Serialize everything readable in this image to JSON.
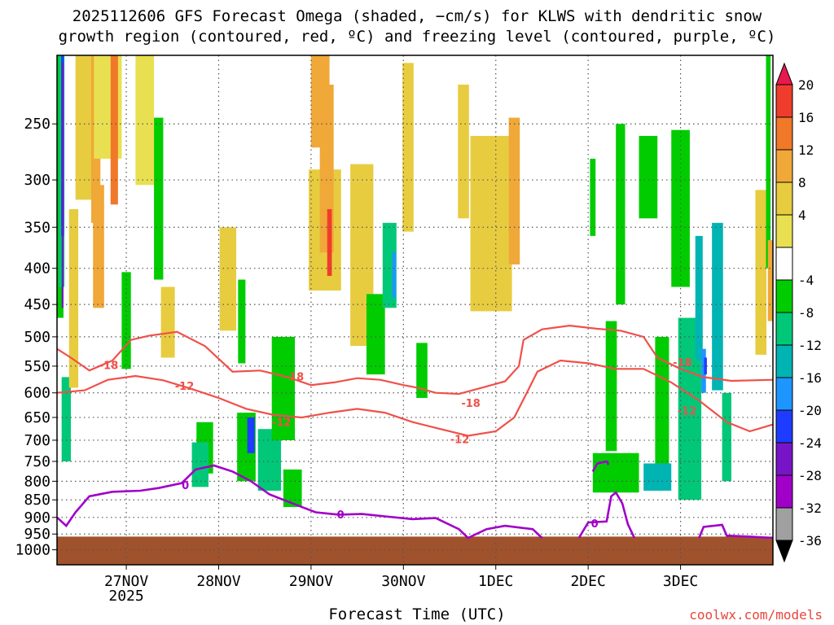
{
  "title": "2025112606 GFS Forecast Omega (shaded, −cm/s) for KLWS with dendritic snow\ngrowth region (contoured, red, ºC) and freezing level (contoured, purple, ºC)",
  "credit": "coolwx.com/models",
  "chart_data": {
    "type": "heatmap",
    "title": "2025112606 GFS Forecast Omega (shaded, −cm/s) for KLWS with dendritic snow growth region (contoured, red, ºC) and freezing level (contoured, purple, ºC)",
    "xlabel": "Forecast Time (UTC)",
    "ylabel": "",
    "x_range": [
      "2025-11-26 06",
      "2025-12-03 18"
    ],
    "x_ticks": [
      {
        "label": "27NOV",
        "sublabel": "2025",
        "day": 1
      },
      {
        "label": "28NOV",
        "day": 2
      },
      {
        "label": "29NOV",
        "day": 3
      },
      {
        "label": "30NOV",
        "day": 4
      },
      {
        "label": "1DEC",
        "day": 5
      },
      {
        "label": "2DEC",
        "day": 6
      },
      {
        "label": "3DEC",
        "day": 7
      }
    ],
    "y_ticks": [
      250,
      300,
      350,
      400,
      450,
      500,
      550,
      600,
      650,
      700,
      750,
      800,
      850,
      900,
      950,
      1000
    ],
    "y_scale": "log (pressure, hPa, inverted)",
    "ylim": [
      1050,
      200
    ],
    "grid": "dotted",
    "colorbar": {
      "levels": [
        20,
        16,
        12,
        8,
        4,
        -4,
        -8,
        -12,
        -16,
        -20,
        -24,
        -28,
        -32,
        -36
      ],
      "colors": [
        "#e8194c",
        "#f03c2c",
        "#f07828",
        "#f0a838",
        "#e8cc40",
        "#e8e050",
        "#ffffff",
        "#00cc00",
        "#00c878",
        "#00b4b4",
        "#1e96ff",
        "#1e3cff",
        "#7814c8",
        "#a000c8",
        "#a0a0a0",
        "#000000"
      ]
    },
    "contours": [
      {
        "series": "dendritic snow growth region",
        "color": "#f0504a",
        "levels": [
          -12,
          -18
        ],
        "labels": [
          {
            "text": "-18",
            "day": 0.56,
            "p": 548
          },
          {
            "text": "-12",
            "day": 1.38,
            "p": 586
          },
          {
            "text": "-18",
            "day": 2.57,
            "p": 569
          },
          {
            "text": "-12",
            "day": 2.43,
            "p": 660
          },
          {
            "text": "-18",
            "day": 4.48,
            "p": 620
          },
          {
            "text": "-12",
            "day": 4.36,
            "p": 697
          },
          {
            "text": "-18",
            "day": 6.77,
            "p": 543
          },
          {
            "text": "-12",
            "day": 6.82,
            "p": 636
          }
        ]
      },
      {
        "series": "freezing level",
        "color": "#a000c8",
        "levels": [
          0
        ],
        "labels": [
          {
            "text": "0",
            "day": 1.39,
            "p": 810
          },
          {
            "text": "0",
            "day": 3.07,
            "p": 891
          },
          {
            "text": "0",
            "day": 5.82,
            "p": 917
          }
        ]
      }
    ],
    "omega_cells": [
      {
        "d": 0.02,
        "p": 280,
        "w": 0.1,
        "dp": 380,
        "c": "#00cc00"
      },
      {
        "d": 0.05,
        "p": 300,
        "w": 0.06,
        "dp": 250,
        "c": "#00c878"
      },
      {
        "d": 0.06,
        "p": 280,
        "w": 0.03,
        "dp": 160,
        "c": "#1e3cff"
      },
      {
        "d": 0.06,
        "p": 330,
        "w": 0.02,
        "dp": 250,
        "c": "#7814c8"
      },
      {
        "d": 0.1,
        "p": 660,
        "w": 0.1,
        "dp": 180,
        "c": "#00c878"
      },
      {
        "d": 0.18,
        "p": 460,
        "w": 0.1,
        "dp": 260,
        "c": "#e8cc40"
      },
      {
        "d": 0.3,
        "p": 240,
        "w": 0.2,
        "dp": 160,
        "c": "#e8cc40"
      },
      {
        "d": 0.42,
        "p": 260,
        "w": 0.1,
        "dp": 170,
        "c": "#f0a838"
      },
      {
        "d": 0.45,
        "p": 380,
        "w": 0.12,
        "dp": 150,
        "c": "#f0a838"
      },
      {
        "d": 0.55,
        "p": 215,
        "w": 0.3,
        "dp": 130,
        "c": "#e8e050"
      },
      {
        "d": 0.62,
        "p": 250,
        "w": 0.08,
        "dp": 150,
        "c": "#f07828"
      },
      {
        "d": 0.75,
        "p": 480,
        "w": 0.1,
        "dp": 150,
        "c": "#00cc00"
      },
      {
        "d": 0.95,
        "p": 240,
        "w": 0.2,
        "dp": 130,
        "c": "#e8e050"
      },
      {
        "d": 1.1,
        "p": 330,
        "w": 0.1,
        "dp": 170,
        "c": "#00cc00"
      },
      {
        "d": 1.2,
        "p": 480,
        "w": 0.15,
        "dp": 110,
        "c": "#e8cc40"
      },
      {
        "d": 1.6,
        "p": 720,
        "w": 0.18,
        "dp": 120,
        "c": "#00cc00"
      },
      {
        "d": 1.55,
        "p": 760,
        "w": 0.18,
        "dp": 110,
        "c": "#00c878"
      },
      {
        "d": 1.85,
        "p": 420,
        "w": 0.18,
        "dp": 140,
        "c": "#e8cc40"
      },
      {
        "d": 2.0,
        "p": 480,
        "w": 0.08,
        "dp": 130,
        "c": "#00cc00"
      },
      {
        "d": 2.05,
        "p": 720,
        "w": 0.2,
        "dp": 160,
        "c": "#00cc00"
      },
      {
        "d": 2.1,
        "p": 690,
        "w": 0.08,
        "dp": 80,
        "c": "#1e3cff"
      },
      {
        "d": 2.3,
        "p": 750,
        "w": 0.25,
        "dp": 150,
        "c": "#00c878"
      },
      {
        "d": 2.45,
        "p": 600,
        "w": 0.25,
        "dp": 200,
        "c": "#00cc00"
      },
      {
        "d": 2.55,
        "p": 820,
        "w": 0.2,
        "dp": 100,
        "c": "#00cc00"
      },
      {
        "d": 2.85,
        "p": 220,
        "w": 0.2,
        "dp": 100,
        "c": "#f0a838"
      },
      {
        "d": 2.9,
        "p": 360,
        "w": 0.35,
        "dp": 140,
        "c": "#e8cc40"
      },
      {
        "d": 2.92,
        "p": 300,
        "w": 0.15,
        "dp": 160,
        "c": "#f0a838"
      },
      {
        "d": 2.95,
        "p": 370,
        "w": 0.05,
        "dp": 80,
        "c": "#f03c2c"
      },
      {
        "d": 3.3,
        "p": 400,
        "w": 0.25,
        "dp": 230,
        "c": "#e8cc40"
      },
      {
        "d": 3.45,
        "p": 500,
        "w": 0.2,
        "dp": 130,
        "c": "#00cc00"
      },
      {
        "d": 3.6,
        "p": 400,
        "w": 0.15,
        "dp": 110,
        "c": "#00c878"
      },
      {
        "d": 3.65,
        "p": 410,
        "w": 0.04,
        "dp": 60,
        "c": "#1e96ff"
      },
      {
        "d": 3.8,
        "p": 280,
        "w": 0.12,
        "dp": 150,
        "c": "#e8cc40"
      },
      {
        "d": 3.95,
        "p": 560,
        "w": 0.12,
        "dp": 100,
        "c": "#00cc00"
      },
      {
        "d": 4.4,
        "p": 280,
        "w": 0.12,
        "dp": 120,
        "c": "#e8cc40"
      },
      {
        "d": 4.7,
        "p": 360,
        "w": 0.45,
        "dp": 200,
        "c": "#e8cc40"
      },
      {
        "d": 4.95,
        "p": 320,
        "w": 0.12,
        "dp": 150,
        "c": "#f0a838"
      },
      {
        "d": 5.8,
        "p": 320,
        "w": 0.06,
        "dp": 80,
        "c": "#00cc00"
      },
      {
        "d": 6.05,
        "p": 780,
        "w": 0.5,
        "dp": 100,
        "c": "#00cc00"
      },
      {
        "d": 6.0,
        "p": 600,
        "w": 0.12,
        "dp": 250,
        "c": "#00cc00"
      },
      {
        "d": 6.1,
        "p": 350,
        "w": 0.1,
        "dp": 200,
        "c": "#00cc00"
      },
      {
        "d": 6.4,
        "p": 300,
        "w": 0.2,
        "dp": 80,
        "c": "#00cc00"
      },
      {
        "d": 6.55,
        "p": 650,
        "w": 0.15,
        "dp": 300,
        "c": "#00cc00"
      },
      {
        "d": 6.75,
        "p": 340,
        "w": 0.2,
        "dp": 170,
        "c": "#00cc00"
      },
      {
        "d": 6.85,
        "p": 660,
        "w": 0.25,
        "dp": 380,
        "c": "#00c878"
      },
      {
        "d": 6.95,
        "p": 450,
        "w": 0.08,
        "dp": 180,
        "c": "#00b4b4"
      },
      {
        "d": 7.0,
        "p": 560,
        "w": 0.05,
        "dp": 80,
        "c": "#1e96ff"
      },
      {
        "d": 7.02,
        "p": 550,
        "w": 0.03,
        "dp": 30,
        "c": "#1e3cff"
      },
      {
        "d": 7.15,
        "p": 470,
        "w": 0.12,
        "dp": 250,
        "c": "#00b4b4"
      },
      {
        "d": 6.5,
        "p": 790,
        "w": 0.3,
        "dp": 70,
        "c": "#00b4b4"
      },
      {
        "d": 7.25,
        "p": 700,
        "w": 0.1,
        "dp": 200,
        "c": "#00c878"
      },
      {
        "d": 7.62,
        "p": 420,
        "w": 0.12,
        "dp": 220,
        "c": "#e8cc40"
      },
      {
        "d": 7.7,
        "p": 300,
        "w": 0.05,
        "dp": 200,
        "c": "#00cc00"
      },
      {
        "d": 7.72,
        "p": 420,
        "w": 0.05,
        "dp": 110,
        "c": "#f0a838"
      }
    ],
    "freezing_level_line": [
      [
        0.0,
        900
      ],
      [
        0.1,
        925
      ],
      [
        0.2,
        885
      ],
      [
        0.35,
        840
      ],
      [
        0.6,
        828
      ],
      [
        0.9,
        825
      ],
      [
        1.1,
        818
      ],
      [
        1.35,
        805
      ],
      [
        1.5,
        770
      ],
      [
        1.7,
        760
      ],
      [
        1.9,
        775
      ],
      [
        2.1,
        800
      ],
      [
        2.3,
        835
      ],
      [
        2.55,
        860
      ],
      [
        2.8,
        885
      ],
      [
        3.05,
        892
      ],
      [
        3.3,
        890
      ],
      [
        3.55,
        897
      ],
      [
        3.85,
        905
      ],
      [
        4.1,
        902
      ],
      [
        4.35,
        935
      ],
      [
        4.45,
        962
      ],
      [
        4.65,
        935
      ],
      [
        4.85,
        925
      ],
      [
        5.15,
        935
      ],
      [
        5.25,
        962
      ]
    ],
    "freezing_level_line_2": [
      [
        5.65,
        962
      ],
      [
        5.75,
        915
      ],
      [
        5.95,
        912
      ],
      [
        6.0,
        840
      ],
      [
        6.05,
        830
      ],
      [
        6.12,
        860
      ],
      [
        6.18,
        920
      ],
      [
        6.25,
        962
      ]
    ],
    "freezing_level_line_3": [
      [
        5.8,
        775
      ],
      [
        5.85,
        755
      ],
      [
        5.95,
        750
      ],
      [
        5.97,
        758
      ]
    ],
    "freezing_level_line_4": [
      [
        6.95,
        962
      ],
      [
        7.0,
        928
      ],
      [
        7.2,
        922
      ],
      [
        7.25,
        955
      ],
      [
        7.5,
        958
      ],
      [
        7.75,
        962
      ]
    ],
    "snow_line_minus18": [
      [
        0.0,
        520
      ],
      [
        0.15,
        535
      ],
      [
        0.35,
        558
      ],
      [
        0.6,
        540
      ],
      [
        0.8,
        505
      ],
      [
        1.0,
        498
      ],
      [
        1.3,
        492
      ],
      [
        1.6,
        515
      ],
      [
        1.9,
        560
      ],
      [
        2.2,
        558
      ],
      [
        2.5,
        570
      ],
      [
        2.75,
        585
      ],
      [
        3.0,
        580
      ],
      [
        3.25,
        572
      ],
      [
        3.5,
        575
      ],
      [
        3.75,
        585
      ],
      [
        3.9,
        590
      ],
      [
        4.1,
        600
      ],
      [
        4.35,
        602
      ],
      [
        4.6,
        590
      ],
      [
        4.85,
        578
      ],
      [
        5.0,
        550
      ],
      [
        5.05,
        505
      ],
      [
        5.25,
        488
      ],
      [
        5.55,
        482
      ],
      [
        5.85,
        487
      ],
      [
        6.1,
        490
      ],
      [
        6.35,
        500
      ],
      [
        6.5,
        535
      ],
      [
        6.75,
        555
      ],
      [
        7.0,
        570
      ],
      [
        7.3,
        577
      ],
      [
        7.75,
        575
      ]
    ],
    "snow_line_minus12": [
      [
        0.0,
        600
      ],
      [
        0.3,
        595
      ],
      [
        0.55,
        575
      ],
      [
        0.85,
        568
      ],
      [
        1.15,
        576
      ],
      [
        1.45,
        592
      ],
      [
        1.75,
        610
      ],
      [
        2.05,
        632
      ],
      [
        2.35,
        645
      ],
      [
        2.65,
        650
      ],
      [
        2.95,
        640
      ],
      [
        3.25,
        632
      ],
      [
        3.55,
        640
      ],
      [
        3.85,
        660
      ],
      [
        4.15,
        675
      ],
      [
        4.45,
        690
      ],
      [
        4.75,
        680
      ],
      [
        4.95,
        650
      ],
      [
        5.1,
        595
      ],
      [
        5.2,
        560
      ],
      [
        5.45,
        540
      ],
      [
        5.75,
        545
      ],
      [
        6.05,
        555
      ],
      [
        6.35,
        555
      ],
      [
        6.65,
        580
      ],
      [
        6.95,
        615
      ],
      [
        7.25,
        660
      ],
      [
        7.5,
        680
      ],
      [
        7.75,
        665
      ]
    ],
    "ground": {
      "color": "#a0522d",
      "top_p": 958
    }
  }
}
